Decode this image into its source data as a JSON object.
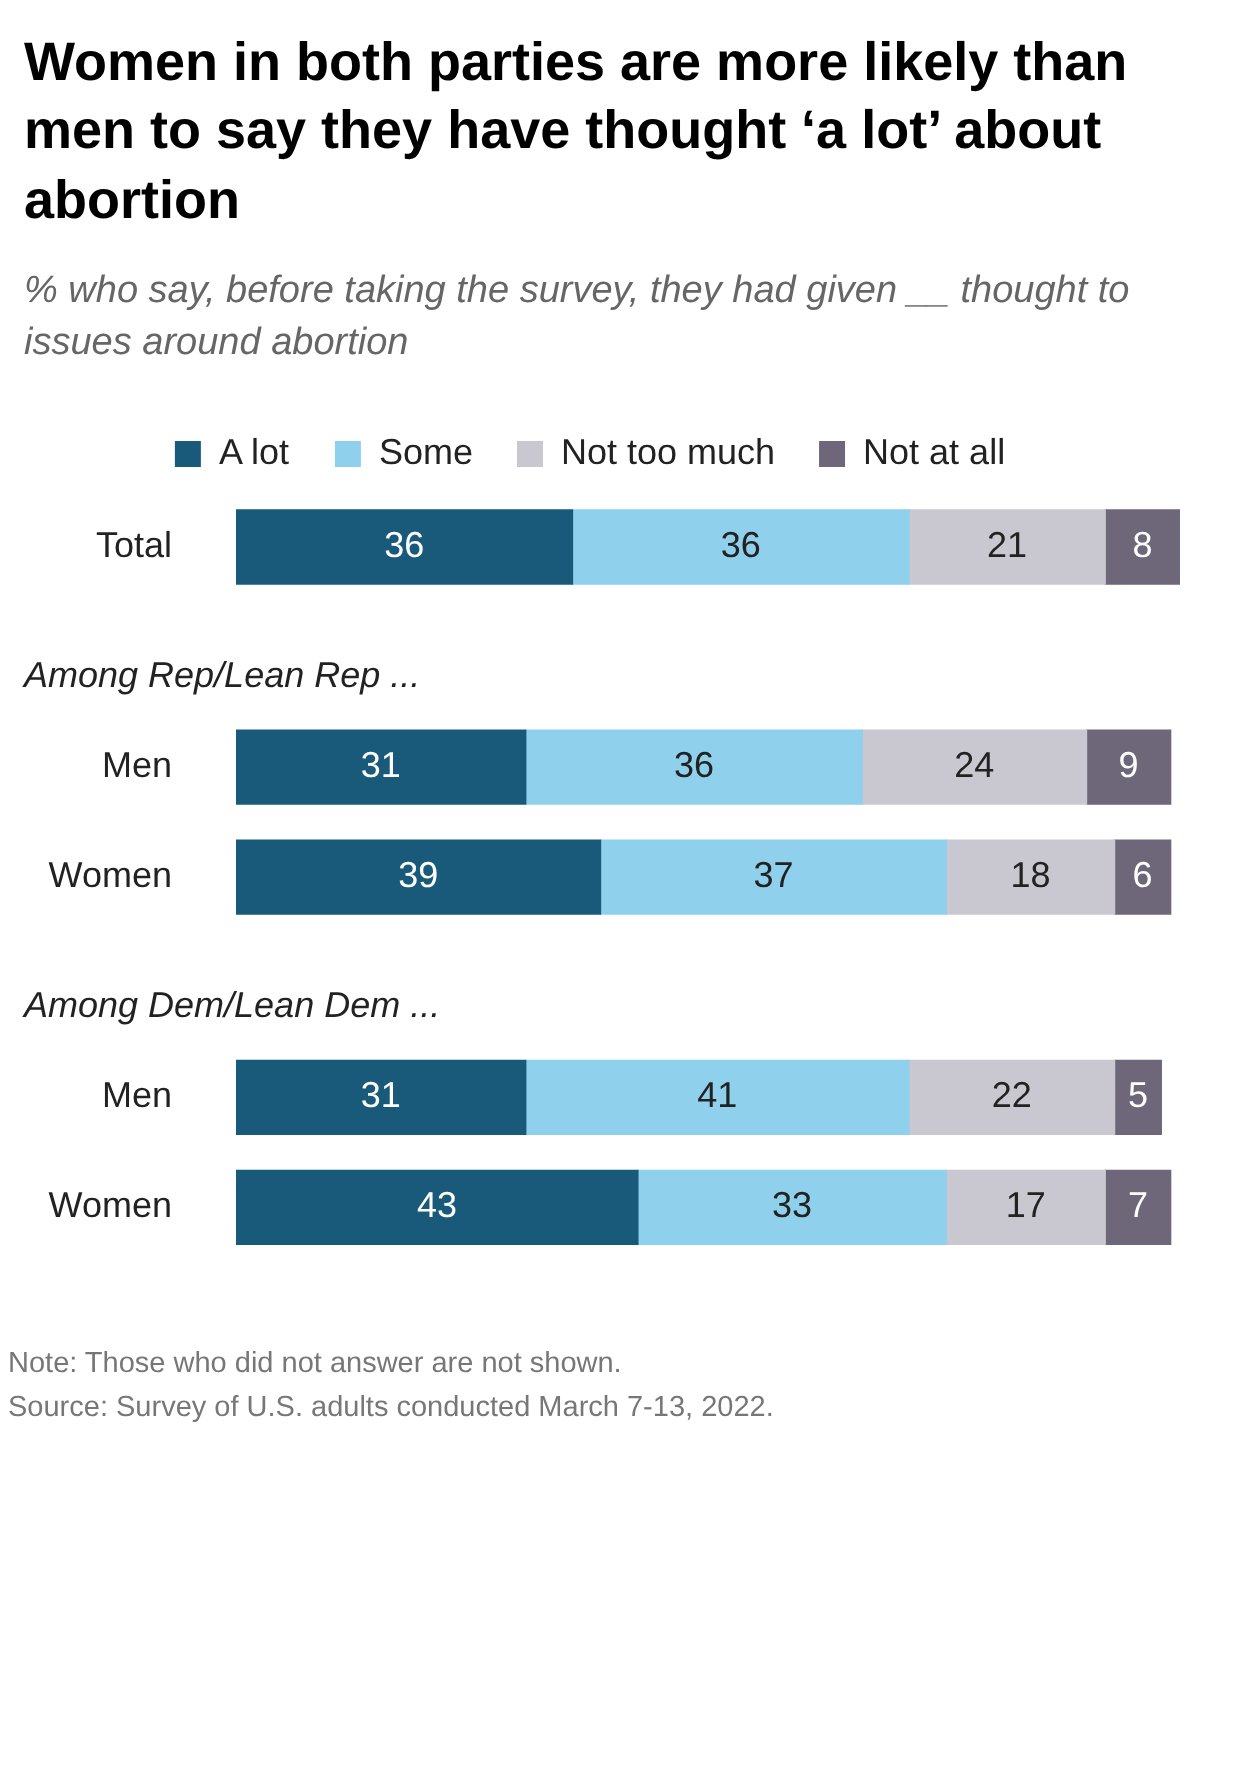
{
  "chart_data": {
    "type": "bar",
    "orientation": "horizontal",
    "stacked": true,
    "data_labels": true,
    "legend": "top",
    "grid": false,
    "title": "Women in both parties are more likely than men to say they have thought ‘a lot’ about abortion",
    "subtitle": "% who say, before taking the survey, they had given __ thought to issues around abortion",
    "categories": [
      "Total",
      "Among Rep/Lean Rep ...",
      "Men",
      "Women",
      "Among Dem/Lean Dem ...",
      "Men",
      "Women"
    ],
    "series": [
      {
        "name": "A lot",
        "color": "#195a7b",
        "values": [
          36,
          null,
          31,
          39,
          null,
          31,
          43
        ]
      },
      {
        "name": "Some",
        "color": "#8fd0ec",
        "values": [
          36,
          null,
          36,
          37,
          null,
          41,
          33
        ]
      },
      {
        "name": "Not too much",
        "color": "#c9c8d0",
        "values": [
          21,
          null,
          24,
          18,
          null,
          22,
          17
        ]
      },
      {
        "name": "Not at all",
        "color": "#6e6679",
        "values": [
          8,
          null,
          9,
          6,
          null,
          5,
          7
        ]
      }
    ],
    "annotations": [
      "Note: Those who did not answer are not shown.",
      "Source: Survey of U.S. adults conducted March 7-13, 2022."
    ]
  }
}
